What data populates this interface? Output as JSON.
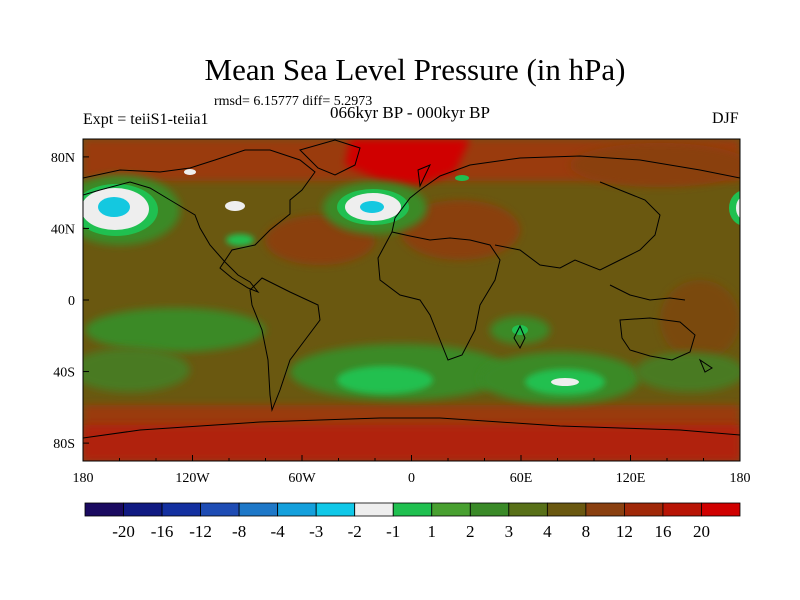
{
  "figure": {
    "title": "Mean Sea Level Pressure (in hPa)",
    "stats": "rmsd= 6.15777 diff= 5.2973",
    "left_label": "Expt = teiiS1-teiia1",
    "center_label": "066kyr BP - 000kyr BP",
    "right_label": "DJF"
  },
  "chart_data": {
    "type": "heatmap",
    "variable": "Mean Sea Level Pressure difference",
    "units": "hPa",
    "projection": "cylindrical-equidistant",
    "x_range": [
      -180,
      180
    ],
    "y_range": [
      -90,
      90
    ],
    "x_ticks": [
      {
        "value": -180,
        "label": "180"
      },
      {
        "value": -120,
        "label": "120W"
      },
      {
        "value": -60,
        "label": "60W"
      },
      {
        "value": 0,
        "label": "0"
      },
      {
        "value": 60,
        "label": "60E"
      },
      {
        "value": 120,
        "label": "120E"
      },
      {
        "value": 180,
        "label": "180"
      }
    ],
    "y_ticks": [
      {
        "value": 80,
        "label": "80N"
      },
      {
        "value": 40,
        "label": "40N"
      },
      {
        "value": 0,
        "label": "0"
      },
      {
        "value": -40,
        "label": "40S"
      },
      {
        "value": -80,
        "label": "80S"
      }
    ],
    "colorbar": {
      "colors": [
        "#1a0a60",
        "#101a82",
        "#1330a0",
        "#1e4cb4",
        "#1e78c8",
        "#14a0dc",
        "#10c8e8",
        "#eeeeee",
        "#20c050",
        "#48a030",
        "#3a8a28",
        "#587018",
        "#6a5810",
        "#8a4010",
        "#a02808",
        "#b81405",
        "#d00000"
      ],
      "labels": [
        "-20",
        "-16",
        "-12",
        "-8",
        "-4",
        "-3",
        "-2",
        "-1",
        "1",
        "2",
        "3",
        "4",
        "8",
        "12",
        "16",
        "20"
      ]
    },
    "regions": [
      {
        "name": "North Pacific low anomaly",
        "lon": -160,
        "lat": 46,
        "value": -2
      },
      {
        "name": "North Atlantic low anomaly",
        "lon": -22,
        "lat": 47,
        "value": -2
      },
      {
        "name": "Arctic high anomaly",
        "lon": 0,
        "lat": 82,
        "value": 20
      },
      {
        "name": "South Atlantic trough",
        "lon": -10,
        "lat": -42,
        "value": 1.5
      },
      {
        "name": "South Indian trough",
        "lon": 80,
        "lat": -43,
        "value": 1.5
      },
      {
        "name": "Southern Ocean high band",
        "lon": 0,
        "lat": -75,
        "value": 16
      }
    ]
  }
}
